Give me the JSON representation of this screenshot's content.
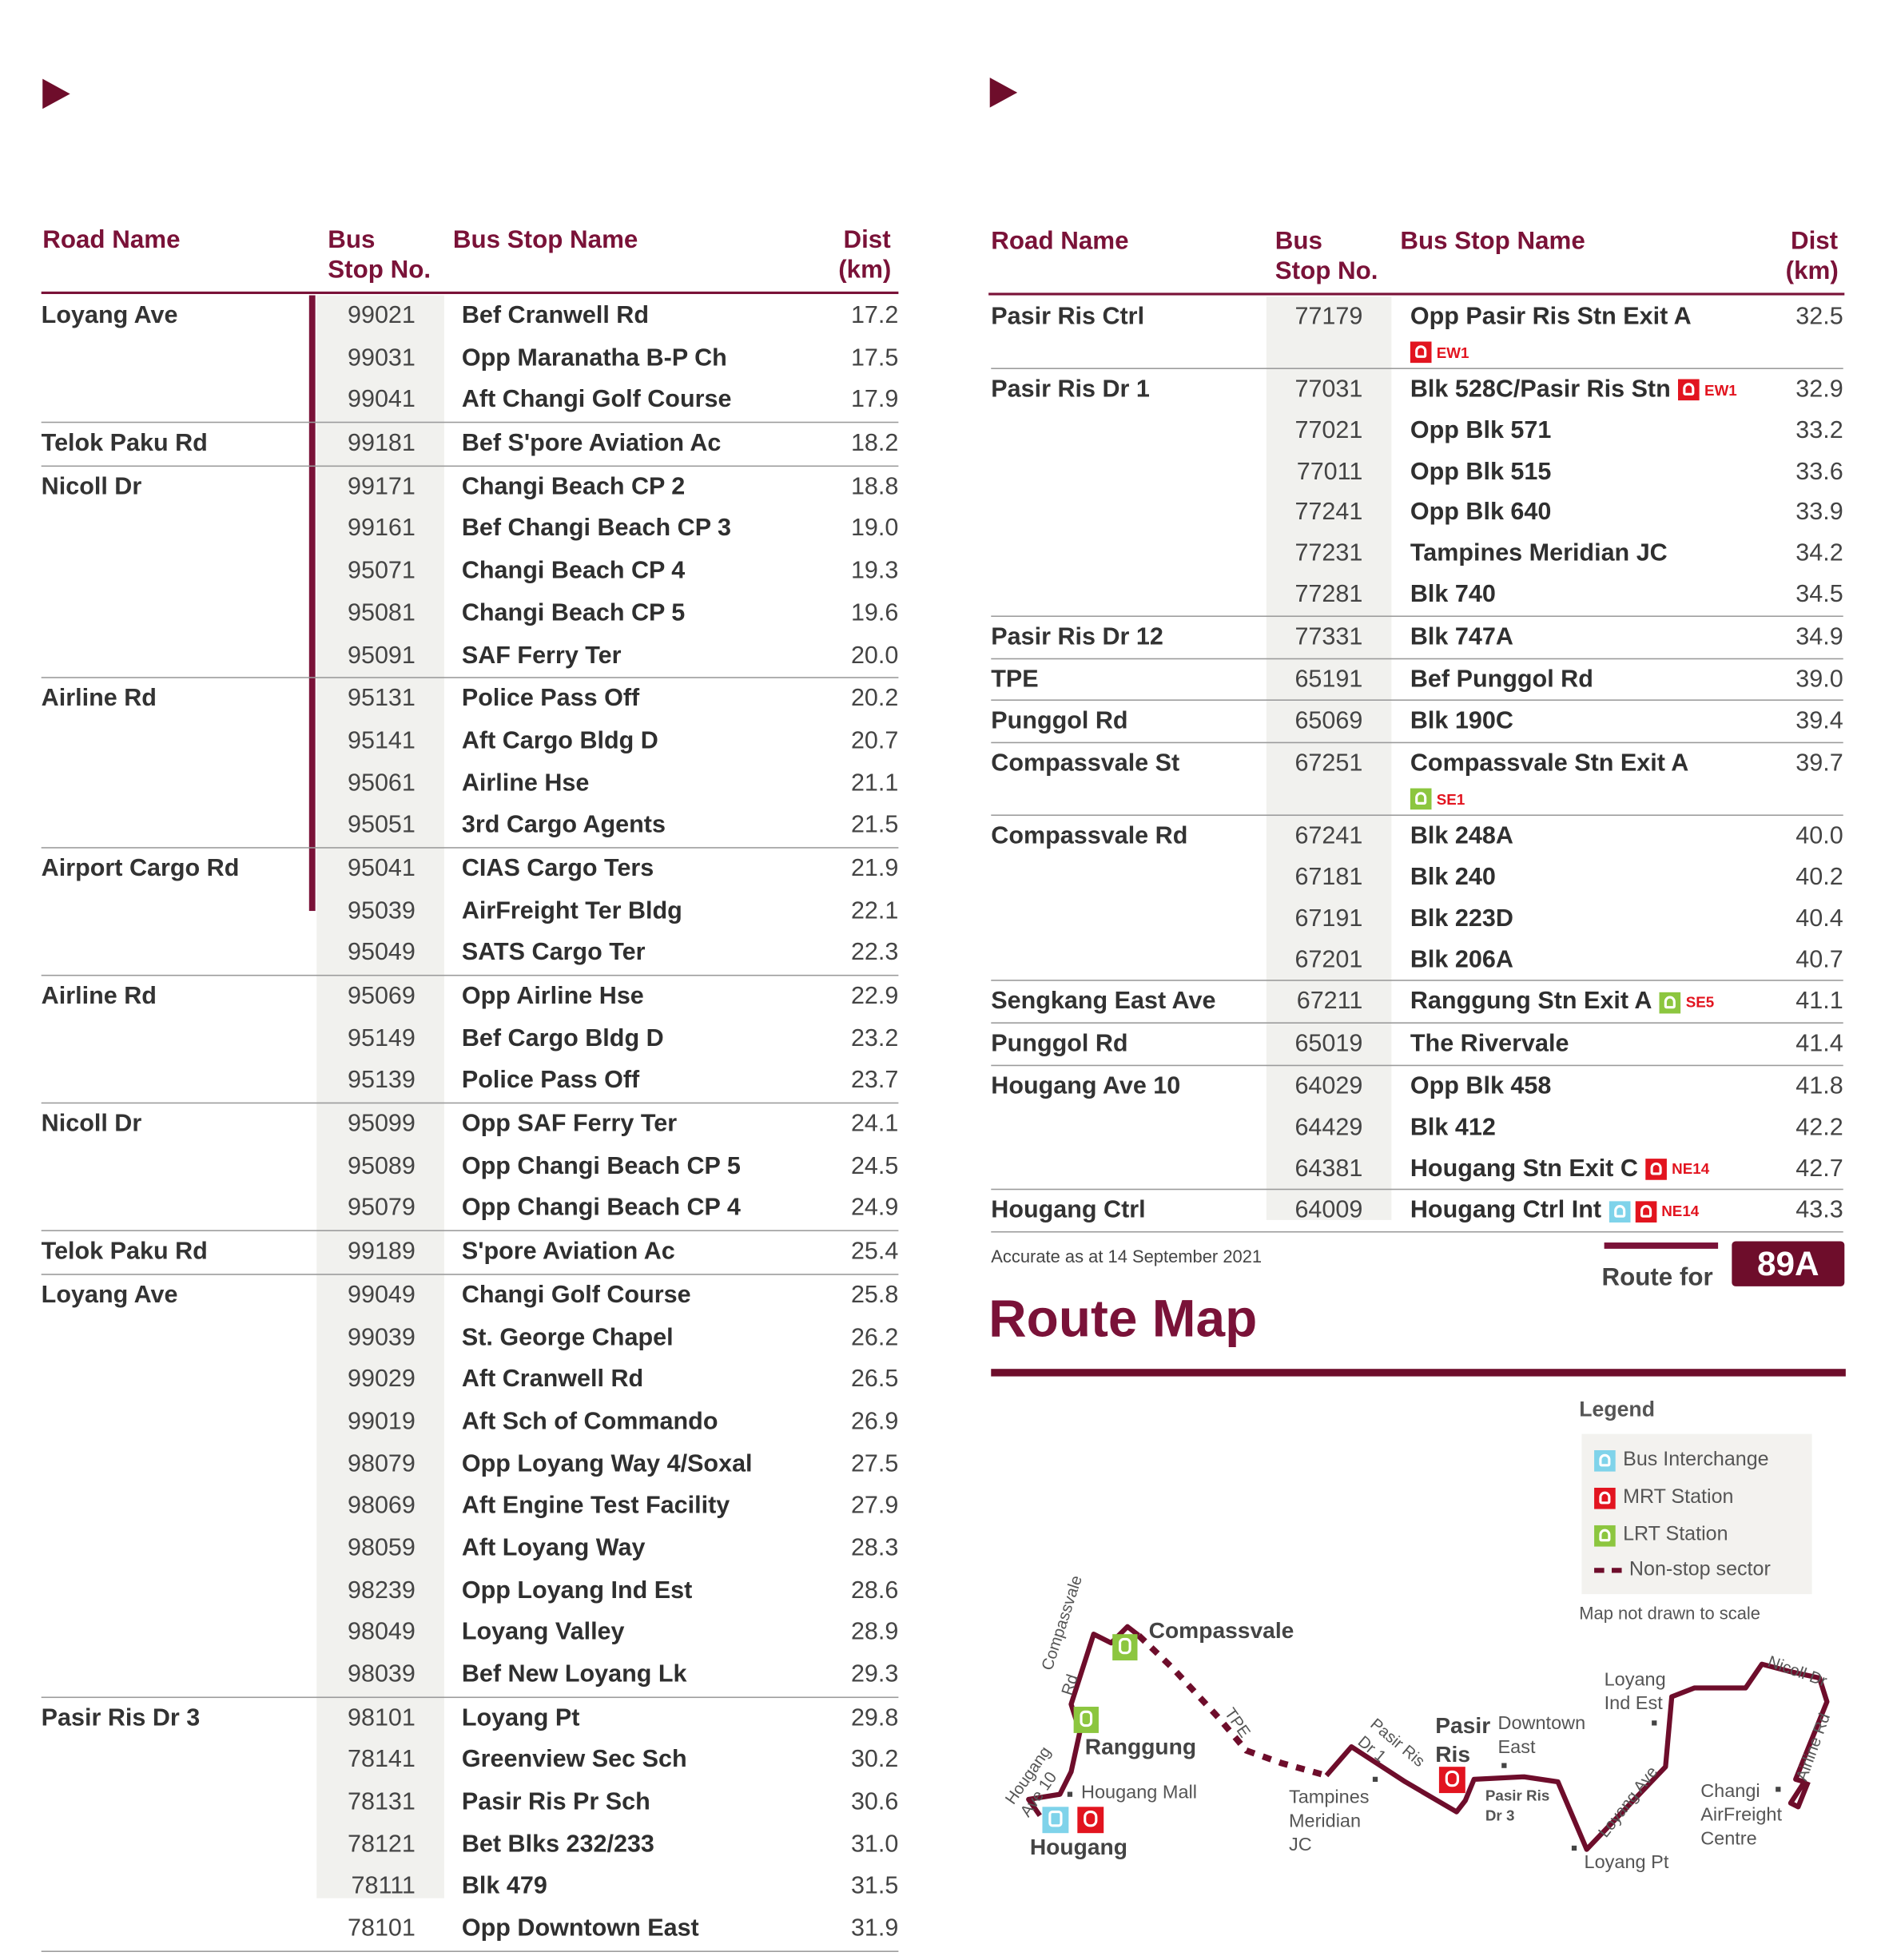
{
  "colors": {
    "maroon": "#7a1238",
    "mrt": "#e2141f",
    "lrt": "#8cc63f",
    "bus": "#7fd3ea"
  },
  "headers": {
    "road": "Road Name",
    "bus": "Bus",
    "stop_no": "Stop No.",
    "stop_name": "Bus Stop Name",
    "dist": "Dist",
    "km": "(km)"
  },
  "left_table": [
    {
      "road": "Loyang Ave",
      "stops": [
        {
          "no": "99021",
          "name": "Bef Cranwell Rd",
          "dist": "17.2"
        },
        {
          "no": "99031",
          "name": "Opp Maranatha B-P Ch",
          "dist": "17.5"
        },
        {
          "no": "99041",
          "name": "Aft Changi Golf Course",
          "dist": "17.9"
        }
      ]
    },
    {
      "road": "Telok Paku Rd",
      "stops": [
        {
          "no": "99181",
          "name": "Bef S'pore Aviation Ac",
          "dist": "18.2"
        }
      ]
    },
    {
      "road": "Nicoll Dr",
      "stops": [
        {
          "no": "99171",
          "name": "Changi Beach CP 2",
          "dist": "18.8"
        },
        {
          "no": "99161",
          "name": "Bef Changi Beach CP 3",
          "dist": "19.0"
        },
        {
          "no": "95071",
          "name": "Changi Beach CP 4",
          "dist": "19.3"
        },
        {
          "no": "95081",
          "name": "Changi Beach CP 5",
          "dist": "19.6"
        },
        {
          "no": "95091",
          "name": "SAF Ferry Ter",
          "dist": "20.0"
        }
      ]
    },
    {
      "road": "Airline Rd",
      "stops": [
        {
          "no": "95131",
          "name": "Police Pass Off",
          "dist": "20.2"
        },
        {
          "no": "95141",
          "name": "Aft Cargo Bldg D",
          "dist": "20.7"
        },
        {
          "no": "95061",
          "name": "Airline Hse",
          "dist": "21.1"
        },
        {
          "no": "95051",
          "name": "3rd Cargo Agents",
          "dist": "21.5"
        }
      ]
    },
    {
      "road": "Airport Cargo Rd",
      "stops": [
        {
          "no": "95041",
          "name": "CIAS Cargo Ters",
          "dist": "21.9"
        },
        {
          "no": "95039",
          "name": "AirFreight Ter Bldg",
          "dist": "22.1"
        },
        {
          "no": "95049",
          "name": "SATS Cargo Ter",
          "dist": "22.3"
        }
      ]
    },
    {
      "road": "Airline Rd",
      "stops": [
        {
          "no": "95069",
          "name": "Opp Airline Hse",
          "dist": "22.9"
        },
        {
          "no": "95149",
          "name": "Bef Cargo Bldg D",
          "dist": "23.2"
        },
        {
          "no": "95139",
          "name": "Police Pass Off",
          "dist": "23.7"
        }
      ]
    },
    {
      "road": "Nicoll Dr",
      "stops": [
        {
          "no": "95099",
          "name": "Opp SAF Ferry Ter",
          "dist": "24.1"
        },
        {
          "no": "95089",
          "name": "Opp Changi Beach CP 5",
          "dist": "24.5"
        },
        {
          "no": "95079",
          "name": "Opp Changi Beach CP 4",
          "dist": "24.9"
        }
      ]
    },
    {
      "road": "Telok Paku Rd",
      "stops": [
        {
          "no": "99189",
          "name": "S'pore Aviation Ac",
          "dist": "25.4"
        }
      ]
    },
    {
      "road": "Loyang Ave",
      "stops": [
        {
          "no": "99049",
          "name": "Changi Golf Course",
          "dist": "25.8"
        },
        {
          "no": "99039",
          "name": "St. George Chapel",
          "dist": "26.2"
        },
        {
          "no": "99029",
          "name": "Aft Cranwell Rd",
          "dist": "26.5"
        },
        {
          "no": "99019",
          "name": "Aft Sch of Commando",
          "dist": "26.9"
        },
        {
          "no": "98079",
          "name": "Opp Loyang Way 4/Soxal",
          "dist": "27.5"
        },
        {
          "no": "98069",
          "name": "Aft Engine Test Facility",
          "dist": "27.9"
        },
        {
          "no": "98059",
          "name": "Aft Loyang Way",
          "dist": "28.3"
        },
        {
          "no": "98239",
          "name": "Opp Loyang Ind Est",
          "dist": "28.6"
        },
        {
          "no": "98049",
          "name": "Loyang Valley",
          "dist": "28.9"
        },
        {
          "no": "98039",
          "name": "Bef New Loyang Lk",
          "dist": "29.3"
        }
      ]
    },
    {
      "road": "Pasir Ris Dr 3",
      "stops": [
        {
          "no": "98101",
          "name": "Loyang Pt",
          "dist": "29.8"
        },
        {
          "no": "78141",
          "name": "Greenview Sec Sch",
          "dist": "30.2"
        },
        {
          "no": "78131",
          "name": "Pasir Ris Pr Sch",
          "dist": "30.6"
        },
        {
          "no": "78121",
          "name": "Bet Blks 232/233",
          "dist": "31.0"
        },
        {
          "no": "78111",
          "name": "Blk 479",
          "dist": "31.5"
        },
        {
          "no": "78101",
          "name": "Opp Downtown East",
          "dist": "31.9"
        }
      ]
    }
  ],
  "right_table": [
    {
      "road": "Pasir Ris Ctrl",
      "stops": [
        {
          "no": "77179",
          "name": "Opp Pasir Ris Stn Exit A",
          "dist": "32.5",
          "badge_below": true,
          "badges": [
            {
              "type": "mrt",
              "code": "EW1"
            }
          ]
        }
      ]
    },
    {
      "road": "Pasir Ris Dr 1",
      "stops": [
        {
          "no": "77031",
          "name": "Blk 528C/Pasir Ris Stn",
          "dist": "32.9",
          "badges": [
            {
              "type": "mrt",
              "code": "EW1"
            }
          ]
        },
        {
          "no": "77021",
          "name": "Opp Blk 571",
          "dist": "33.2"
        },
        {
          "no": "77011",
          "name": "Opp Blk 515",
          "dist": "33.6"
        },
        {
          "no": "77241",
          "name": "Opp Blk 640",
          "dist": "33.9"
        },
        {
          "no": "77231",
          "name": "Tampines Meridian JC",
          "dist": "34.2"
        },
        {
          "no": "77281",
          "name": "Blk 740",
          "dist": "34.5"
        }
      ]
    },
    {
      "road": "Pasir Ris Dr 12",
      "stops": [
        {
          "no": "77331",
          "name": "Blk 747A",
          "dist": "34.9"
        }
      ]
    },
    {
      "road": "TPE",
      "stops": [
        {
          "no": "65191",
          "name": "Bef Punggol Rd",
          "dist": "39.0"
        }
      ]
    },
    {
      "road": "Punggol Rd",
      "stops": [
        {
          "no": "65069",
          "name": "Blk 190C",
          "dist": "39.4"
        }
      ]
    },
    {
      "road": "Compassvale St",
      "stops": [
        {
          "no": "67251",
          "name": "Compassvale Stn Exit A",
          "dist": "39.7",
          "badge_below": true,
          "badges": [
            {
              "type": "lrt",
              "code": "SE1"
            }
          ]
        }
      ]
    },
    {
      "road": "Compassvale Rd",
      "stops": [
        {
          "no": "67241",
          "name": "Blk 248A",
          "dist": "40.0"
        },
        {
          "no": "67181",
          "name": "Blk 240",
          "dist": "40.2"
        },
        {
          "no": "67191",
          "name": "Blk 223D",
          "dist": "40.4"
        },
        {
          "no": "67201",
          "name": "Blk 206A",
          "dist": "40.7"
        }
      ]
    },
    {
      "road": "Sengkang East Ave",
      "stops": [
        {
          "no": "67211",
          "name": "Ranggung Stn Exit A",
          "dist": "41.1",
          "badges": [
            {
              "type": "lrt",
              "code": "SE5"
            }
          ]
        }
      ]
    },
    {
      "road": "Punggol Rd",
      "stops": [
        {
          "no": "65019",
          "name": "The Rivervale",
          "dist": "41.4"
        }
      ]
    },
    {
      "road": "Hougang Ave 10",
      "stops": [
        {
          "no": "64029",
          "name": "Opp Blk 458",
          "dist": "41.8"
        },
        {
          "no": "64429",
          "name": "Blk 412",
          "dist": "42.2"
        },
        {
          "no": "64381",
          "name": "Hougang Stn Exit C",
          "dist": "42.7",
          "badges": [
            {
              "type": "mrt",
              "code": "NE14"
            }
          ]
        }
      ]
    },
    {
      "road": "Hougang Ctrl",
      "stops": [
        {
          "no": "64009",
          "name": "Hougang Ctrl Int",
          "dist": "43.3",
          "badges": [
            {
              "type": "bus",
              "code": ""
            },
            {
              "type": "mrt",
              "code": "NE14"
            }
          ]
        }
      ]
    }
  ],
  "footer": {
    "accurate": "Accurate as at 14 September 2021",
    "route_for": "Route for",
    "route_no": "89A"
  },
  "route_map": {
    "title": "Route Map",
    "legend_title": "Legend",
    "legend": [
      {
        "icon": "bus",
        "label": "Bus Interchange"
      },
      {
        "icon": "mrt",
        "label": "MRT Station"
      },
      {
        "icon": "lrt",
        "label": "LRT Station"
      },
      {
        "icon": "dash",
        "label": "Non-stop sector"
      }
    ],
    "scale_note": "Map not drawn to scale",
    "stations": {
      "compassvale": "Compassvale",
      "ranggung": "Ranggung",
      "hougang": "Hougang",
      "pasir": "Pasir",
      "ris": "Ris"
    },
    "places": {
      "hougang_mall": "Hougang Mall",
      "tampines1": "Tampines",
      "tampines2": "Meridian",
      "tampines3": "JC",
      "downtown1": "Downtown",
      "downtown2": "East",
      "loyang_ind1": "Loyang",
      "loyang_ind2": "Ind Est",
      "loyang_pt": "Loyang Pt",
      "changi1": "Changi",
      "changi2": "AirFreight",
      "changi3": "Centre",
      "prd3_1": "Pasir Ris",
      "prd3_2": "Dr 3"
    },
    "roads": {
      "compassvale_rd1": "Compassvale",
      "compassvale_rd2": "Rd",
      "hougang1": "Hougang",
      "hougang2": "Ave 10",
      "tpe": "TPE",
      "prd1_1": "Pasir Ris",
      "prd1_2": "Dr 1",
      "loyang_ave": "Loyang Ave",
      "airline": "Airline Rd",
      "nicoll": "Nicoll Dr"
    }
  }
}
